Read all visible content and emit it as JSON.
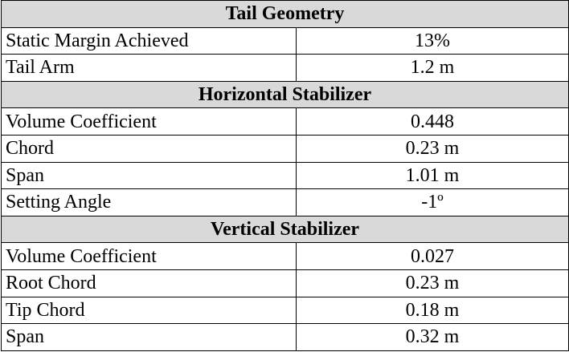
{
  "sections": [
    {
      "title": "Tail Geometry",
      "rows": [
        {
          "label": "Static Margin Achieved",
          "value": "13%"
        },
        {
          "label": "Tail Arm",
          "value": "1.2 m"
        }
      ]
    },
    {
      "title": "Horizontal Stabilizer",
      "rows": [
        {
          "label": "Volume Coefficient",
          "value": "0.448"
        },
        {
          "label": "Chord",
          "value": "0.23 m"
        },
        {
          "label": "Span",
          "value": "1.01 m"
        },
        {
          "label": "Setting Angle",
          "value": "-1º"
        }
      ]
    },
    {
      "title": "Vertical Stabilizer",
      "rows": [
        {
          "label": "Volume Coefficient",
          "value": "0.027"
        },
        {
          "label": "Root Chord",
          "value": "0.23 m"
        },
        {
          "label": "Tip Chord",
          "value": "0.18 m"
        },
        {
          "label": "Span",
          "value": "0.32 m"
        }
      ]
    }
  ],
  "colors": {
    "section_header_bg": "#d9d9d9",
    "border": "#000000"
  }
}
